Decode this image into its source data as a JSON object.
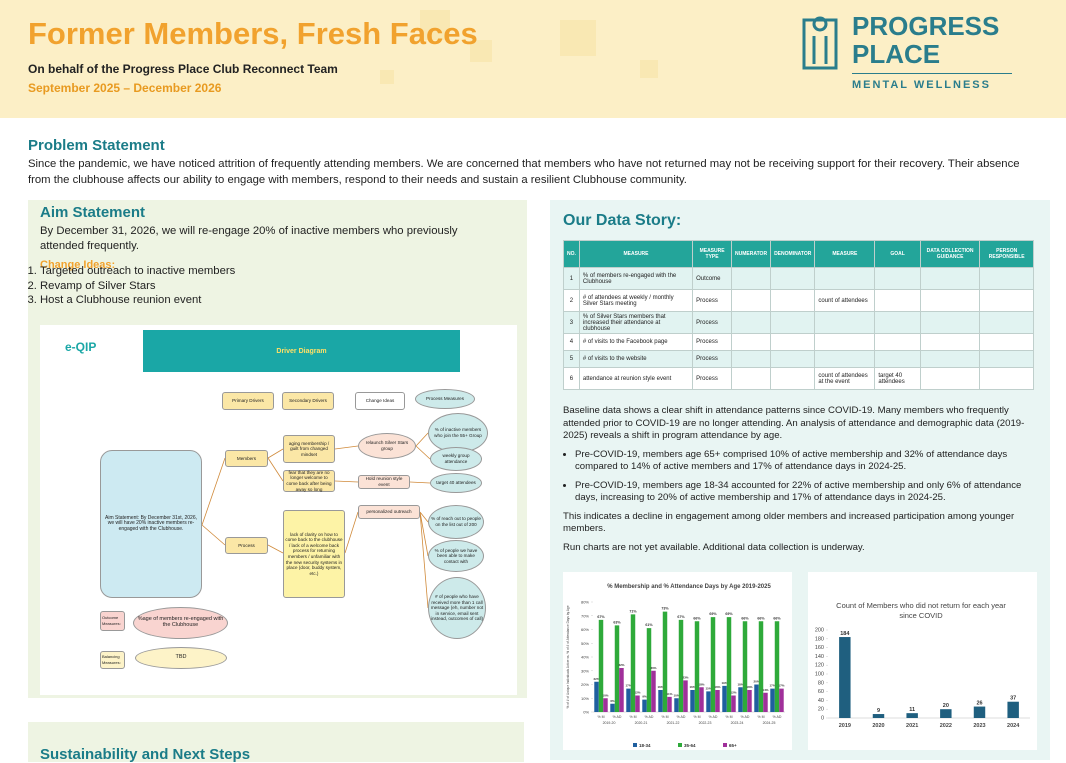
{
  "header": {
    "title": "Former Members, Fresh Faces",
    "subtitle": "On behalf of the Progress Place Club Reconnect Team",
    "dates": "September 2025 – December 2026"
  },
  "logo": {
    "line1": "PROGRESS",
    "line2": "PLACE",
    "tagline": "MENTAL WELLNESS"
  },
  "problem": {
    "heading": "Problem Statement",
    "text": "Since the pandemic, we have noticed attrition of frequently attending members. We are concerned that members who have not returned may not be receiving support for their recovery. Their absence from the clubhouse affects our ability to engage with members, respond to their needs and sustain a resilient Clubhouse community."
  },
  "aim": {
    "heading": "Aim Statement",
    "text": "By December 31, 2026, we will re-engage 20% of inactive members who previously attended frequently.",
    "change_heading": "Change Ideas:",
    "change_ideas": [
      "Targeted outreach to inactive members",
      "Revamp of Silver Stars",
      "Host a Clubhouse reunion event"
    ]
  },
  "driver": {
    "logo": "e-QIP",
    "title": "Driver Diagram",
    "nodes": [
      "Primary Drivers",
      "Secondary Drivers",
      "Change Ideas",
      "Process Measures",
      "Aim Statement: By December 31st, 2026, we will have 20% inactive members re-engaged with the Clubhouse.",
      "Members",
      "Process",
      "aging membership / guilt from changed mindset",
      "fear that they are no longer welcome to come back after being away so long",
      "lack of clarity on how to come back to the clubhouse / lack of a welcome back process for returning members / unfamiliar with the new security systems in place (door, buddy system, etc.)",
      "relaunch Silver Stars group",
      "Hold reunion style event",
      "personalized outreach",
      "% of inactive members who join the 55+ Group",
      "weekly group attendance",
      "target 40 attendees",
      "% of reach out to people on the list out of 200",
      "% of people we have been able to make contact with",
      "# of people who have received more than 1 call message (eh, number not in service, email sent instead, outcomes of call)",
      "Outcome Measures:",
      "%age of members re-engaged with the Clubhouse",
      "Balancing Measures:",
      "TBD"
    ]
  },
  "data_story": {
    "heading": "Our Data Story:",
    "table": {
      "headers": [
        "NO.",
        "MEASURE",
        "MEASURE TYPE",
        "NUMERATOR",
        "DENOMINATOR",
        "MEASURE",
        "GOAL",
        "DATA COLLECTION GUIDANCE",
        "PERSON RESPONSIBLE"
      ],
      "rows": [
        [
          "1",
          "% of members re-engaged with the Clubhouse",
          "Outcome",
          null,
          null,
          null,
          null,
          null,
          null
        ],
        [
          "2",
          "# of attendees at weekly / monthly Silver Stars meeting",
          "Process",
          null,
          null,
          "count of attendees",
          null,
          null,
          null
        ],
        [
          "3",
          "% of Silver Stars members that increased their attendance at clubhouse",
          "Process",
          null,
          null,
          null,
          null,
          null,
          null
        ],
        [
          "4",
          "# of visits to the Facebook page",
          "Process",
          null,
          null,
          null,
          null,
          null,
          null
        ],
        [
          "5",
          "# of visits to the website",
          "Process",
          null,
          null,
          null,
          null,
          null,
          null
        ],
        [
          "6",
          "attendance at reunion style event",
          "Process",
          null,
          null,
          "count of attendees at the event",
          "target 40 attendees",
          null,
          null
        ]
      ]
    },
    "intro": "Baseline data shows a clear shift in attendance patterns since COVID-19. Many members who frequently attended prior to COVID-19 are no longer attending. An analysis of attendance and demographic data (2019-2025) reveals a shift in program attendance by age.",
    "bullets": [
      "Pre-COVID-19, members age 65+ comprised 10% of active membership and 32% of attendance days compared to 14% of active members and 17% of attendance days in 2024-25.",
      "Pre-COVID-19, members age 18-34 accounted for 22% of active membership and only 6% of attendance days, increasing to 20% of active membership and 17% of attendance days in 2024-25."
    ],
    "conclusion": "This indicates a decline in engagement among older members and increased participation among younger members.",
    "note": "Run charts are not yet available. Additional data collection is underway."
  },
  "sustain": {
    "heading": "Sustainability and Next Steps"
  },
  "chart_data": [
    {
      "type": "bar",
      "title": "% Membership and % Attendance Days by Age 2019-2025",
      "y_label": "% of # of Unique Individuals Active vs. % of # of Attendance Days by Age",
      "categories": [
        "% M",
        "% AD",
        "% M",
        "% AD",
        "% M",
        "% AD",
        "% M",
        "% AD",
        "% M",
        "% AD",
        "% M",
        "% AD"
      ],
      "groups": [
        "2019-20",
        "2020-21",
        "2021-22",
        "2022-23",
        "2023-24",
        "2024-25"
      ],
      "series": [
        {
          "name": "18-34",
          "color": "#1f5f9f",
          "values": [
            22,
            6,
            17,
            9,
            16,
            10,
            16,
            15,
            19,
            18,
            20,
            17
          ],
          "value_labels": [
            "22%",
            "6%",
            "17%",
            "9%",
            "16%",
            "10%",
            "16%",
            "15%",
            "19%",
            "18%",
            "20%",
            "17%"
          ]
        },
        {
          "name": "35-64",
          "color": "#2eaa3a",
          "values": [
            67,
            63,
            71,
            61,
            73,
            67,
            66,
            69,
            69,
            66,
            66,
            66
          ],
          "value_labels": [
            "67%",
            "63%",
            "71%",
            "61%",
            "73%",
            "67%",
            "66%",
            "69%",
            "69%",
            "66%",
            "66%",
            "66%"
          ]
        },
        {
          "name": "65+",
          "color": "#a0309a",
          "values": [
            10,
            32,
            12,
            30,
            11,
            23,
            18,
            16,
            12,
            16,
            14,
            17
          ],
          "value_labels": [
            "10%",
            "32%",
            "12%",
            "30%",
            "11%",
            "23%",
            "18%",
            "16%",
            "12%",
            "16%",
            "14%",
            "17%"
          ]
        }
      ],
      "ylim": [
        0,
        80
      ],
      "yticks": [
        {
          "value": 0,
          "label": "0%"
        },
        {
          "value": 10,
          "label": "10%"
        },
        {
          "value": 20,
          "label": "20%"
        },
        {
          "value": 30,
          "label": "30%"
        },
        {
          "value": 40,
          "label": "40%"
        },
        {
          "value": 50,
          "label": "50%"
        },
        {
          "value": 60,
          "label": "60%"
        },
        {
          "value": 70,
          "label": "70%"
        },
        {
          "value": 80,
          "label": "80%"
        }
      ],
      "grid": false,
      "legend": "bottom"
    },
    {
      "type": "bar",
      "title": "Count of Members who did not return for each year since COVID",
      "categories": [
        "2019",
        "2020",
        "2021",
        "2022",
        "2023",
        "2024"
      ],
      "values": [
        184,
        9,
        11,
        20,
        26,
        37
      ],
      "color": "#1f5f7f",
      "ylim": [
        0,
        200
      ],
      "yticks": [
        0,
        20,
        40,
        60,
        80,
        100,
        120,
        140,
        160,
        180,
        200
      ],
      "grid": false
    }
  ]
}
